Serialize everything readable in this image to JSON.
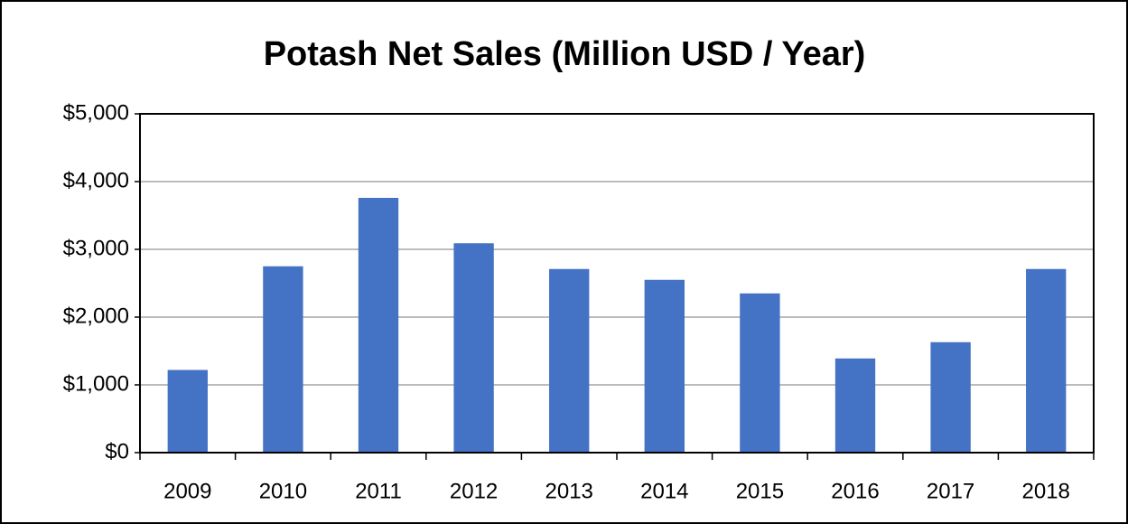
{
  "chart_data": {
    "type": "bar",
    "title": "Potash Net Sales (Million USD / Year)",
    "categories": [
      "2009",
      "2010",
      "2011",
      "2012",
      "2013",
      "2014",
      "2015",
      "2016",
      "2017",
      "2018"
    ],
    "values": [
      1220,
      2750,
      3760,
      3090,
      2710,
      2550,
      2350,
      1390,
      1630,
      2710
    ],
    "color": "#4472c4",
    "ylim": [
      0,
      5000
    ],
    "yticks": [
      {
        "value": 0,
        "label": "$0"
      },
      {
        "value": 1000,
        "label": "$1,000"
      },
      {
        "value": 2000,
        "label": "$2,000"
      },
      {
        "value": 3000,
        "label": "$3,000"
      },
      {
        "value": 4000,
        "label": "$4,000"
      },
      {
        "value": 5000,
        "label": "$5,000"
      }
    ],
    "grid": true
  }
}
